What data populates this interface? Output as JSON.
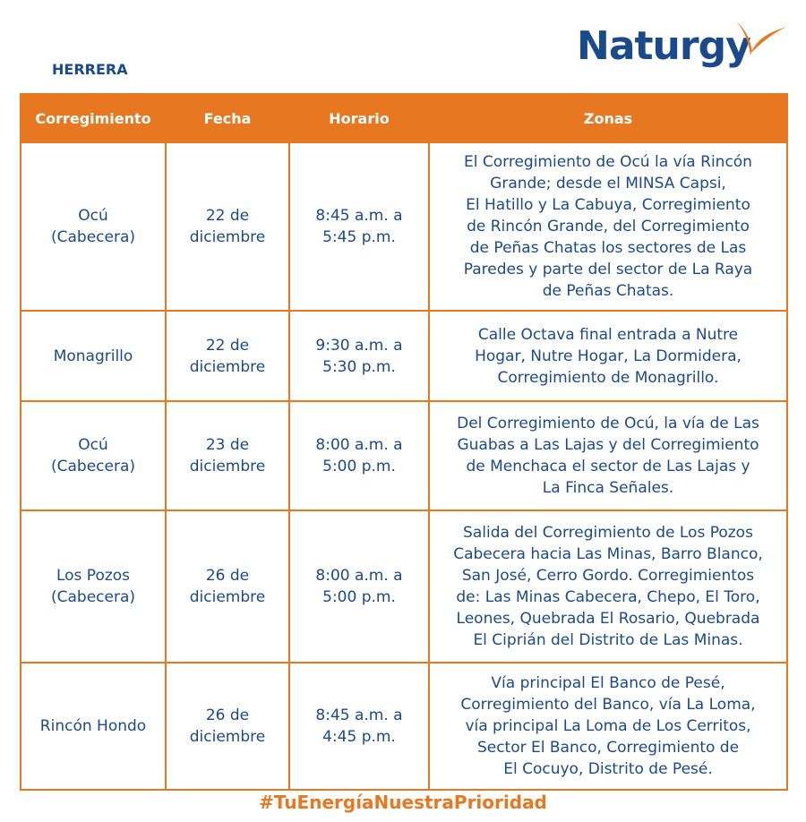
{
  "header": {
    "region": "HERRERA",
    "logo": "Naturgy"
  },
  "table": {
    "columns": [
      "Corregimiento",
      "Fecha",
      "Horario",
      "Zonas"
    ],
    "rows": [
      [
        [
          "Ocú",
          "(Cabecera)"
        ],
        [
          "22 de",
          "diciembre"
        ],
        [
          "8:45 a.m. a",
          "5:45 p.m."
        ],
        [
          "El Corregimiento de Ocú la vía Rincón",
          "Grande; desde el MINSA Capsi,",
          "El Hatillo y La Cabuya, Corregimiento",
          "de Rincón Grande, del Corregimiento",
          "de Peñas Chatas los sectores de Las",
          "Paredes y parte del sector de La Raya",
          "de Peñas Chatas."
        ]
      ],
      [
        [
          "Monagrillo"
        ],
        [
          "22 de",
          "diciembre"
        ],
        [
          "9:30 a.m. a",
          "5:30 p.m."
        ],
        [
          "Calle Octava final entrada a Nutre",
          "Hogar, Nutre Hogar, La Dormidera,",
          "Corregimiento de Monagrillo."
        ]
      ],
      [
        [
          "Ocú",
          "(Cabecera)"
        ],
        [
          "23 de",
          "diciembre"
        ],
        [
          "8:00 a.m. a",
          "5:00 p.m."
        ],
        [
          "Del Corregimiento de Ocú, la vía de Las",
          "Guabas a Las Lajas y del Corregimiento",
          "de Menchaca el sector de Las Lajas y",
          "La Finca Señales."
        ]
      ],
      [
        [
          "Los Pozos",
          "(Cabecera)"
        ],
        [
          "26 de",
          "diciembre"
        ],
        [
          "8:00 a.m. a",
          "5:00 p.m."
        ],
        [
          "Salida del Corregimiento de Los Pozos",
          "Cabecera hacia Las Minas, Barro Blanco,",
          "San José, Cerro Gordo. Corregimientos",
          "de: Las Minas Cabecera, Chepo, El Toro,",
          "Leones, Quebrada El Rosario, Quebrada",
          "El Ciprián del Distrito de Las Minas."
        ]
      ],
      [
        [
          "Rincón Hondo"
        ],
        [
          "26 de",
          "diciembre"
        ],
        [
          "8:45 a.m. a",
          "4:45 p.m."
        ],
        [
          "Vía principal El Banco de Pesé,",
          "Corregimiento del Banco, vía La Loma,",
          "vía principal La Loma de Los Cerritos,",
          "Sector El Banco, Corregimiento de",
          "El Cocuyo, Distrito de Pesé."
        ]
      ]
    ]
  },
  "footer": {
    "hashtag": "#TuEnergíaNuestraPrioridad"
  }
}
